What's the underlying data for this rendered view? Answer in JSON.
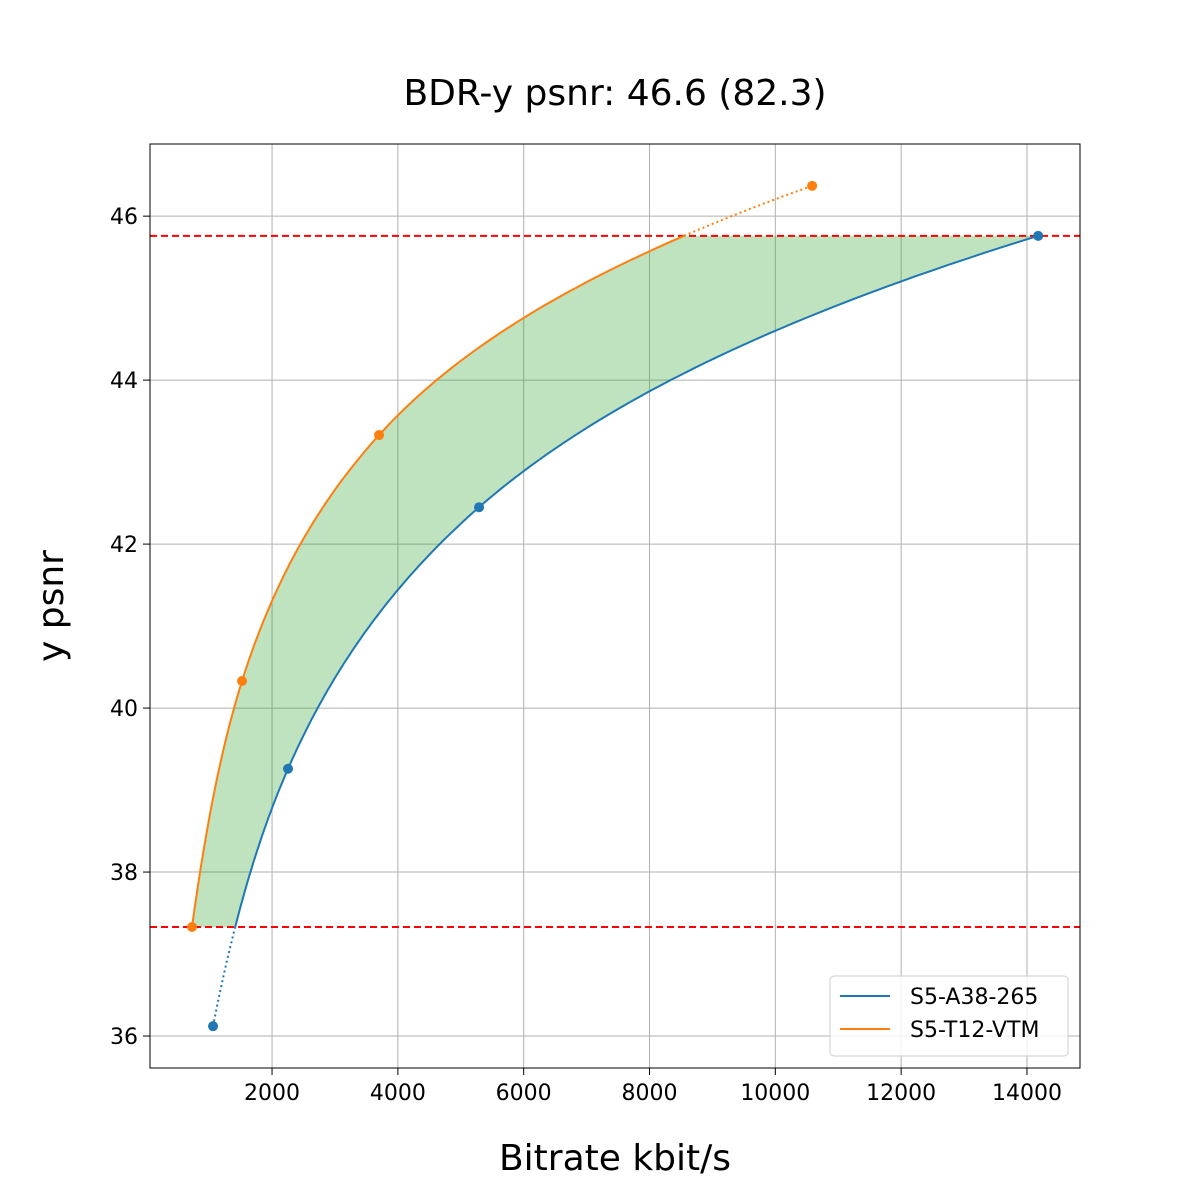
{
  "chart_data": {
    "type": "line",
    "title": "BDR-y psnr: 46.6 (82.3)",
    "xlabel": "Bitrate kbit/s",
    "ylabel": "y psnr",
    "xlim": [
      60,
      14843
    ],
    "ylim": [
      35.61,
      46.88
    ],
    "xticks": [
      2000,
      4000,
      6000,
      8000,
      10000,
      12000,
      14000
    ],
    "yticks": [
      36,
      38,
      40,
      42,
      44,
      46
    ],
    "grid": true,
    "legend_position": "bottom-right",
    "series": [
      {
        "name": "S5-A38-265",
        "color": "#1f77b4",
        "x": [
          1062,
          2254,
          5291,
          14178
        ],
        "y": [
          36.12,
          39.26,
          42.45,
          45.76
        ]
      },
      {
        "name": "S5-T12-VTM",
        "color": "#ff7f0e",
        "x": [
          728,
          1523,
          3701,
          10585
        ],
        "y": [
          37.33,
          40.33,
          43.33,
          46.37
        ]
      }
    ],
    "reference_lines": {
      "color": "#ff0000",
      "y": [
        37.33,
        45.76
      ]
    },
    "fill": {
      "color": "#2ca02c",
      "between": "series curves within reference range"
    }
  }
}
